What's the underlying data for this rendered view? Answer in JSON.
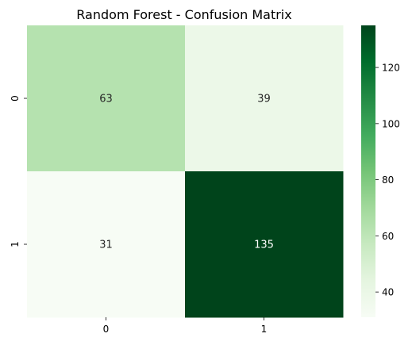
{
  "chart_data": {
    "type": "heatmap",
    "title": "Random Forest - Confusion Matrix",
    "xlabel": "",
    "ylabel": "",
    "x_categories": [
      "0",
      "1"
    ],
    "y_categories": [
      "0",
      "1"
    ],
    "values": [
      [
        63,
        39
      ],
      [
        31,
        135
      ]
    ],
    "cell_labels": [
      [
        "63",
        "39"
      ],
      [
        "31",
        "135"
      ]
    ],
    "colormap": "Greens",
    "color_range": [
      31,
      135
    ],
    "colorbar_ticks": [
      40,
      60,
      80,
      100,
      120
    ],
    "colorbar_tick_labels": [
      "40",
      "60",
      "80",
      "100",
      "120"
    ],
    "colorbar_placement": "right",
    "colors": {
      "min": "#f7fcf5",
      "max": "#00441b",
      "text_dark": "#262626",
      "text_light": "#ffffff"
    }
  }
}
